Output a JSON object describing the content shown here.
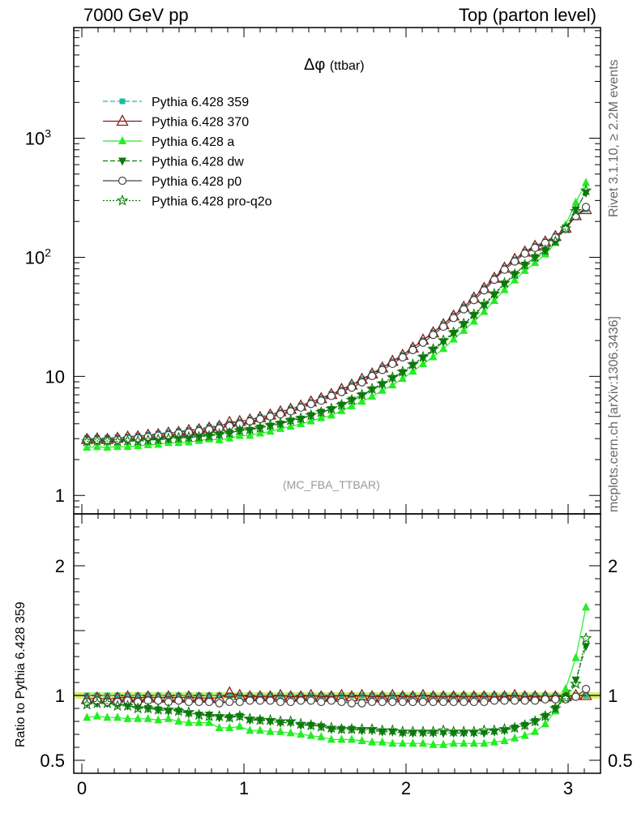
{
  "header": {
    "left": "7000 GeV pp",
    "right": "Top (parton level)"
  },
  "side_labels": {
    "rivet": "Rivet 3.1.10, ≥ 2.2M events",
    "mcplots": "mcplots.cern.ch [arXiv:1306.3436]"
  },
  "plot": {
    "title_symbol": "Δφ",
    "title_sub": "(ttbar)",
    "watermark": "(MC_FBA_TTBAR)",
    "ratio_ylabel": "Ratio to Pythia 6.428 359"
  },
  "colors": {
    "p359": "#1abc9c",
    "p370": "#8b1a1a",
    "pa": "#22ee22",
    "pdw": "#0b7a0b",
    "pp0": "#444444",
    "pq2o": "#0b7a0b",
    "band": "#d4f070"
  },
  "chart_data": {
    "type": "line",
    "x": [
      0.0314,
      0.0942,
      0.1571,
      0.2199,
      0.2827,
      0.3456,
      0.4084,
      0.4712,
      0.5341,
      0.5969,
      0.6597,
      0.7226,
      0.7854,
      0.8482,
      0.9111,
      0.9739,
      1.0367,
      1.0996,
      1.1624,
      1.2252,
      1.2881,
      1.3509,
      1.4137,
      1.4765,
      1.5394,
      1.6022,
      1.665,
      1.7279,
      1.7907,
      1.8535,
      1.9164,
      1.9792,
      2.042,
      2.1049,
      2.1677,
      2.2305,
      2.2934,
      2.3562,
      2.419,
      2.4819,
      2.5447,
      2.6075,
      2.6704,
      2.7332,
      2.796,
      2.8588,
      2.9217,
      2.9845,
      3.0473,
      3.1102
    ],
    "main": {
      "yscale": "log",
      "ylim": [
        0.7,
        8500
      ],
      "yticks": [
        1,
        10,
        100,
        1000
      ],
      "ytick_labels": [
        "1",
        "10",
        "10^2",
        "10^3"
      ]
    },
    "ratio": {
      "ylim": [
        0.4,
        2.4
      ],
      "yticks": [
        0.5,
        1,
        2
      ],
      "ytick_labels": [
        "0.5",
        "1",
        "2"
      ]
    },
    "xlim": [
      -0.05,
      3.2
    ],
    "xticks": [
      0,
      1,
      2,
      3
    ],
    "xtick_labels": [
      "0",
      "1",
      "2",
      "3"
    ],
    "legend_position": "top-left",
    "series": [
      {
        "name": "Pythia 6.428 359",
        "key": "p359",
        "marker": "square",
        "dash": "6,3",
        "ratio": [
          1,
          1,
          1,
          1,
          1,
          1,
          1,
          1,
          1,
          1,
          1,
          1,
          1,
          1,
          1,
          1,
          1,
          1,
          1,
          1,
          1,
          1,
          1,
          1,
          1,
          1,
          1,
          1,
          1,
          1,
          1,
          1,
          1,
          1,
          1,
          1,
          1,
          1,
          1,
          1,
          1,
          1,
          1,
          1,
          1,
          1,
          1,
          1,
          1,
          1
        ]
      },
      {
        "name": "Pythia 6.428 370",
        "key": "p370",
        "marker": "triangle-open",
        "dash": "",
        "ratio": [
          0.97,
          0.98,
          0.97,
          0.98,
          0.99,
          0.98,
          0.99,
          0.98,
          0.99,
          0.98,
          0.99,
          0.98,
          0.98,
          0.98,
          1.02,
          1.0,
          0.99,
          0.99,
          0.99,
          1.0,
          0.99,
          0.99,
          1.0,
          0.99,
          0.99,
          1.0,
          0.99,
          1.0,
          0.99,
          0.99,
          1.0,
          0.99,
          0.99,
          1.0,
          0.99,
          0.99,
          0.99,
          0.99,
          0.99,
          0.99,
          0.99,
          0.99,
          1.0,
          0.99,
          0.99,
          0.99,
          0.99,
          0.99,
          1.0,
          1.0
        ]
      },
      {
        "name": "Pythia 6.428 a",
        "key": "pa",
        "marker": "triangle",
        "dash": "",
        "ratio": [
          0.83,
          0.84,
          0.83,
          0.83,
          0.82,
          0.82,
          0.82,
          0.81,
          0.82,
          0.8,
          0.79,
          0.79,
          0.79,
          0.75,
          0.75,
          0.76,
          0.73,
          0.73,
          0.72,
          0.72,
          0.71,
          0.7,
          0.69,
          0.68,
          0.66,
          0.66,
          0.66,
          0.65,
          0.64,
          0.64,
          0.63,
          0.63,
          0.63,
          0.63,
          0.62,
          0.62,
          0.63,
          0.63,
          0.63,
          0.63,
          0.64,
          0.65,
          0.67,
          0.69,
          0.72,
          0.78,
          0.88,
          1.05,
          1.29,
          1.68
        ]
      },
      {
        "name": "Pythia 6.428 dw",
        "key": "pdw",
        "marker": "triangle-down",
        "dash": "6,3",
        "ratio": [
          0.94,
          0.94,
          0.94,
          0.93,
          0.92,
          0.91,
          0.9,
          0.89,
          0.88,
          0.88,
          0.86,
          0.85,
          0.85,
          0.83,
          0.83,
          0.84,
          0.81,
          0.81,
          0.8,
          0.79,
          0.79,
          0.77,
          0.77,
          0.76,
          0.74,
          0.74,
          0.74,
          0.73,
          0.73,
          0.72,
          0.72,
          0.71,
          0.71,
          0.71,
          0.71,
          0.71,
          0.71,
          0.71,
          0.71,
          0.71,
          0.72,
          0.73,
          0.75,
          0.77,
          0.8,
          0.84,
          0.9,
          0.99,
          1.12,
          1.38
        ]
      },
      {
        "name": "Pythia 6.428 p0",
        "key": "pp0",
        "marker": "circle-open",
        "dash": "",
        "ratio": [
          0.95,
          0.96,
          0.95,
          0.95,
          0.96,
          0.95,
          0.96,
          0.96,
          0.95,
          0.96,
          0.95,
          0.95,
          0.95,
          0.94,
          0.95,
          0.95,
          0.96,
          0.96,
          0.96,
          0.95,
          0.95,
          0.96,
          0.96,
          0.95,
          0.96,
          0.95,
          0.94,
          0.94,
          0.95,
          0.95,
          0.95,
          0.95,
          0.95,
          0.95,
          0.95,
          0.95,
          0.95,
          0.95,
          0.95,
          0.95,
          0.96,
          0.96,
          0.96,
          0.96,
          0.96,
          0.97,
          0.97,
          0.97,
          0.99,
          1.05
        ]
      },
      {
        "name": "Pythia 6.428 pro-q2o",
        "key": "pq2o",
        "marker": "star",
        "dash": "2,2",
        "ratio": [
          0.93,
          0.94,
          0.94,
          0.92,
          0.92,
          0.9,
          0.9,
          0.89,
          0.89,
          0.88,
          0.87,
          0.85,
          0.84,
          0.84,
          0.83,
          0.84,
          0.82,
          0.81,
          0.81,
          0.8,
          0.8,
          0.78,
          0.77,
          0.76,
          0.75,
          0.74,
          0.74,
          0.74,
          0.74,
          0.73,
          0.73,
          0.72,
          0.72,
          0.72,
          0.72,
          0.73,
          0.72,
          0.72,
          0.72,
          0.73,
          0.73,
          0.74,
          0.75,
          0.77,
          0.8,
          0.84,
          0.9,
          0.98,
          1.09,
          1.44
        ]
      }
    ],
    "reference_values": [
      3.05,
      3.05,
      3.05,
      3.09,
      3.13,
      3.18,
      3.24,
      3.31,
      3.38,
      3.46,
      3.55,
      3.65,
      3.76,
      3.89,
      4.03,
      4.18,
      4.36,
      4.56,
      4.79,
      5.05,
      5.35,
      5.7,
      6.11,
      6.58,
      7.13,
      7.78,
      8.55,
      9.47,
      10.6,
      11.9,
      13.4,
      15.2,
      17.5,
      20.2,
      23.5,
      27.5,
      32.5,
      38.5,
      46.0,
      55.5,
      67.5,
      82.0,
      96.0,
      112,
      125,
      136,
      151,
      178,
      224,
      252
    ]
  }
}
